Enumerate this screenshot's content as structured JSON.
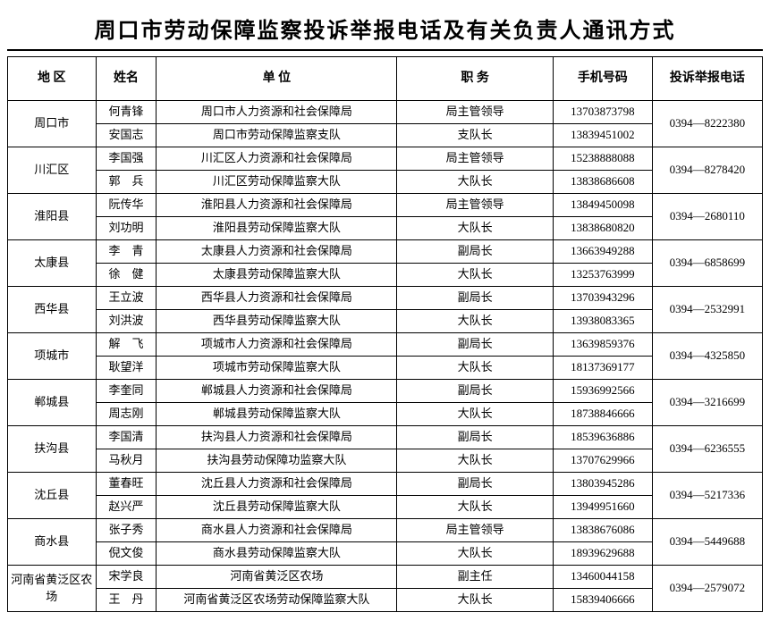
{
  "title": "周口市劳动保障监察投诉举报电话及有关负责人通讯方式",
  "headers": {
    "region": "地 区",
    "name": "姓名",
    "unit": "单 位",
    "post": "职 务",
    "phone": "手机号码",
    "report": "投诉举报电话"
  },
  "groups": [
    {
      "region": "周口市",
      "report": "0394—8222380",
      "rows": [
        {
          "name": "何青锋",
          "unit": "周口市人力资源和社会保障局",
          "post": "局主管领导",
          "phone": "13703873798"
        },
        {
          "name": "安国志",
          "unit": "周口市劳动保障监察支队",
          "post": "支队长",
          "phone": "13839451002"
        }
      ]
    },
    {
      "region": "川汇区",
      "report": "0394—8278420",
      "rows": [
        {
          "name": "李国强",
          "unit": "川汇区人力资源和社会保障局",
          "post": "局主管领导",
          "phone": "15238888088"
        },
        {
          "name": "郭　兵",
          "unit": "川汇区劳动保障监察大队",
          "post": "大队长",
          "phone": "13838686608"
        }
      ]
    },
    {
      "region": "淮阳县",
      "report": "0394—2680110",
      "rows": [
        {
          "name": "阮传华",
          "unit": "淮阳县人力资源和社会保障局",
          "post": "局主管领导",
          "phone": "13849450098"
        },
        {
          "name": "刘功明",
          "unit": "淮阳县劳动保障监察大队",
          "post": "大队长",
          "phone": "13838680820"
        }
      ]
    },
    {
      "region": "太康县",
      "report": "0394—6858699",
      "rows": [
        {
          "name": "李　青",
          "unit": "太康县人力资源和社会保障局",
          "post": "副局长",
          "phone": "13663949288"
        },
        {
          "name": "徐　健",
          "unit": "太康县劳动保障监察大队",
          "post": "大队长",
          "phone": "13253763999"
        }
      ]
    },
    {
      "region": "西华县",
      "report": "0394—2532991",
      "rows": [
        {
          "name": "王立波",
          "unit": "西华县人力资源和社会保障局",
          "post": "副局长",
          "phone": "13703943296"
        },
        {
          "name": "刘洪波",
          "unit": "西华县劳动保障监察大队",
          "post": "大队长",
          "phone": "13938083365"
        }
      ]
    },
    {
      "region": "项城市",
      "report": "0394—4325850",
      "rows": [
        {
          "name": "解　飞",
          "unit": "项城市人力资源和社会保障局",
          "post": "副局长",
          "phone": "13639859376"
        },
        {
          "name": "耿望洋",
          "unit": "项城市劳动保障监察大队",
          "post": "大队长",
          "phone": "18137369177"
        }
      ]
    },
    {
      "region": "郸城县",
      "report": "0394—3216699",
      "rows": [
        {
          "name": "李奎同",
          "unit": "郸城县人力资源和社会保障局",
          "post": "副局长",
          "phone": "15936992566"
        },
        {
          "name": "周志刚",
          "unit": "郸城县劳动保障监察大队",
          "post": "大队长",
          "phone": "18738846666"
        }
      ]
    },
    {
      "region": "扶沟县",
      "report": "0394—6236555",
      "rows": [
        {
          "name": "李国清",
          "unit": "扶沟县人力资源和社会保障局",
          "post": "副局长",
          "phone": "18539636886"
        },
        {
          "name": "马秋月",
          "unit": "扶沟县劳动保障功监察大队",
          "post": "大队长",
          "phone": "13707629966"
        }
      ]
    },
    {
      "region": "沈丘县",
      "report": "0394—5217336",
      "rows": [
        {
          "name": "董春旺",
          "unit": "沈丘县人力资源和社会保障局",
          "post": "副局长",
          "phone": "13803945286"
        },
        {
          "name": "赵兴严",
          "unit": "沈丘县劳动保障监察大队",
          "post": "大队长",
          "phone": "13949951660"
        }
      ]
    },
    {
      "region": "商水县",
      "report": "0394—5449688",
      "rows": [
        {
          "name": "张子秀",
          "unit": "商水县人力资源和社会保障局",
          "post": "局主管领导",
          "phone": "13838676086"
        },
        {
          "name": "倪文俊",
          "unit": "商水县劳动保障监察大队",
          "post": "大队长",
          "phone": "18939629688"
        }
      ]
    },
    {
      "region": "河南省黄泛区农场",
      "report": "0394—2579072",
      "rows": [
        {
          "name": "宋学良",
          "unit": "河南省黄泛区农场",
          "post": "副主任",
          "phone": "13460044158"
        },
        {
          "name": "王　丹",
          "unit": "河南省黄泛区农场劳动保障监察大队",
          "post": "大队长",
          "phone": "15839406666"
        }
      ]
    }
  ]
}
